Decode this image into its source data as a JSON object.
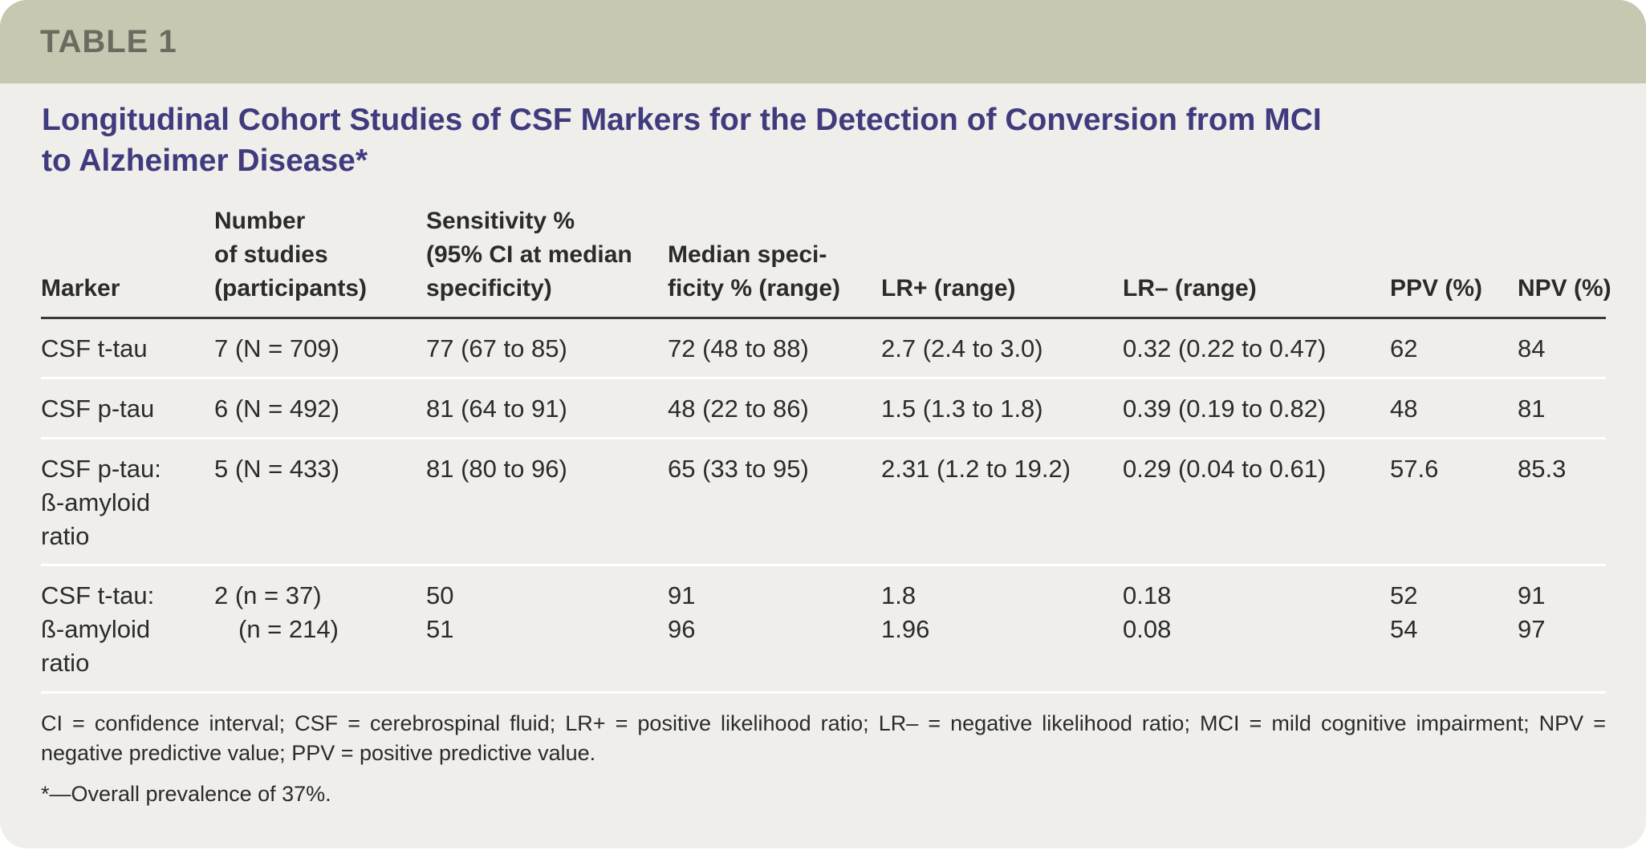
{
  "tab_label": "TABLE 1",
  "title_lines": [
    "Longitudinal Cohort Studies of CSF Markers for the Detection of Conversion from MCI",
    "to Alzheimer Disease*"
  ],
  "headers": {
    "marker": [
      "Marker"
    ],
    "studies": [
      "Number",
      "of studies",
      "(participants)"
    ],
    "sensitivity": [
      "Sensitivity %",
      "(95% CI at median",
      "specificity)"
    ],
    "specificity": [
      "Median speci-",
      "ficity % (range)"
    ],
    "lr_pos": [
      "LR+ (range)"
    ],
    "lr_neg": [
      "LR– (range)"
    ],
    "ppv": [
      "PPV (%)"
    ],
    "npv": [
      "NPV (%)"
    ]
  },
  "rows": [
    {
      "marker": [
        "CSF t-tau"
      ],
      "studies": [
        "7 (N = 709)"
      ],
      "sensitivity": [
        "77 (67 to 85)"
      ],
      "specificity": [
        "72 (48 to 88)"
      ],
      "lr_pos": [
        "2.7 (2.4 to 3.0)"
      ],
      "lr_neg": [
        "0.32 (0.22 to 0.47)"
      ],
      "ppv": [
        "62"
      ],
      "npv": [
        "84"
      ]
    },
    {
      "marker": [
        "CSF p-tau"
      ],
      "studies": [
        "6 (N = 492)"
      ],
      "sensitivity": [
        "81 (64 to 91)"
      ],
      "specificity": [
        "48 (22 to 86)"
      ],
      "lr_pos": [
        "1.5 (1.3 to 1.8)"
      ],
      "lr_neg": [
        "0.39 (0.19 to 0.82)"
      ],
      "ppv": [
        "48"
      ],
      "npv": [
        "81"
      ]
    },
    {
      "marker": [
        "CSF p-tau:",
        "ß-amyloid",
        "ratio"
      ],
      "studies": [
        "5 (N = 433)"
      ],
      "sensitivity": [
        "81 (80 to 96)"
      ],
      "specificity": [
        "65 (33 to 95)"
      ],
      "lr_pos": [
        "2.31 (1.2 to 19.2)"
      ],
      "lr_neg": [
        "0.29 (0.04 to 0.61)"
      ],
      "ppv": [
        "57.6"
      ],
      "npv": [
        "85.3"
      ]
    },
    {
      "marker": [
        "CSF t-tau:",
        "ß-amyloid",
        "ratio"
      ],
      "studies": [
        "2 (n = 37)",
        "(n = 214)"
      ],
      "sensitivity": [
        "50",
        "51"
      ],
      "specificity": [
        "91",
        "96"
      ],
      "lr_pos": [
        "1.8",
        "1.96"
      ],
      "lr_neg": [
        "0.18",
        "0.08"
      ],
      "ppv": [
        "52",
        "54"
      ],
      "npv": [
        "91",
        "97"
      ]
    }
  ],
  "footnotes": {
    "abbreviations": "CI = confidence interval; CSF = cerebrospinal fluid; LR+ = positive likelihood ratio; LR– = negative likelihood ratio; MCI = mild cognitive impairment; NPV = negative predictive value; PPV = positive predictive value.",
    "prevalence": "*—Overall prevalence of 37%."
  }
}
